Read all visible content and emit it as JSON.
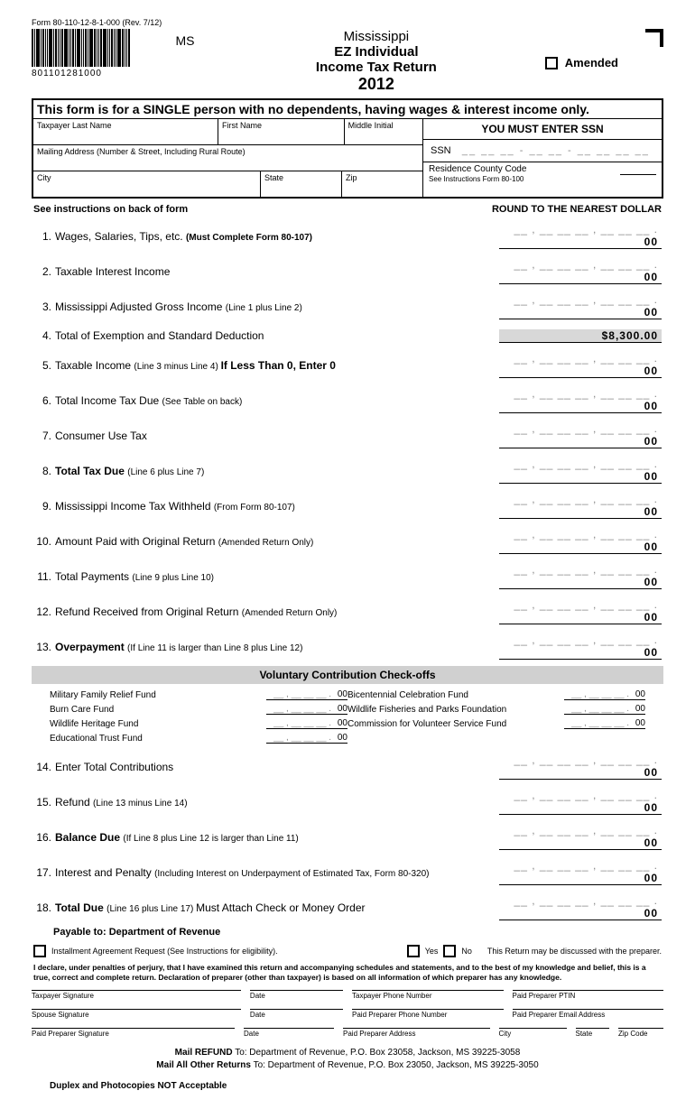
{
  "form_number": "Form 80-110-12-8-1-000 (Rev. 7/12)",
  "barcode_number": "801101281000",
  "state_code": "MS",
  "title": {
    "line1": "Mississippi",
    "line2": "EZ Individual",
    "line3": "Income Tax Return",
    "year": "2012"
  },
  "amended_label": "Amended",
  "eligibility": "This form is for a SINGLE person with no dependents, having wages & interest income only.",
  "fields": {
    "last_name": "Taxpayer Last Name",
    "first_name": "First Name",
    "middle_initial": "Middle Initial",
    "mailing_address": "Mailing Address (Number & Street, Including Rural Route)",
    "city": "City",
    "state": "State",
    "zip": "Zip",
    "ssn_header": "YOU MUST ENTER SSN",
    "ssn_label": "SSN",
    "ssn_placeholder": "__  __  __  -  __  __  -  __  __  __  __",
    "county_label": "Residence County Code",
    "county_instructions": "See Instructions Form 80-100"
  },
  "instructions_left": "See instructions on back of form",
  "instructions_right": "ROUND TO THE NEAREST DOLLAR",
  "amount_placeholder": "__ , __ __ __ , __ __ __ .",
  "cents": "00",
  "lines": [
    {
      "num": "1.",
      "label": "Wages, Salaries, Tips, etc. ",
      "suffix": "(Must Complete Form 80-107)",
      "bold_suffix": true
    },
    {
      "num": "2.",
      "label": "Taxable Interest Income"
    },
    {
      "num": "3.",
      "label": "Mississippi Adjusted Gross Income ",
      "suffix": "(Line 1 plus Line 2)"
    },
    {
      "num": "4.",
      "label": "Total of Exemption and Standard Deduction",
      "value": "$8,300.00",
      "highlighted": true
    },
    {
      "num": "5.",
      "label": "Taxable Income ",
      "suffix": "(Line 3 minus Line 4) ",
      "bold_mid": "If Less Than 0, Enter 0"
    },
    {
      "num": "6.",
      "label": "Total Income Tax Due ",
      "suffix": "(See Table on back)"
    },
    {
      "num": "7.",
      "label": "Consumer Use Tax"
    },
    {
      "num": "8.",
      "label": "Total Tax Due ",
      "suffix": "(Line 6 plus Line 7)",
      "bold": true
    },
    {
      "num": "9.",
      "label": "Mississippi Income Tax Withheld ",
      "suffix": "(From Form 80-107)"
    },
    {
      "num": "10.",
      "label": "Amount Paid with Original Return ",
      "suffix": "(Amended Return Only)"
    },
    {
      "num": "11.",
      "label": "Total Payments ",
      "suffix": "(Line 9 plus Line 10)"
    },
    {
      "num": "12.",
      "label": "Refund Received from Original Return ",
      "suffix": "(Amended Return Only)"
    },
    {
      "num": "13.",
      "label": "Overpayment ",
      "suffix": "(If Line 11 is larger than Line 8 plus Line 12)",
      "bold": true
    }
  ],
  "contributions_header": "Voluntary Contribution Check-offs",
  "contributions_left": [
    "Military Family Relief Fund",
    "Burn Care Fund",
    "Wildlife Heritage Fund",
    "Educational Trust Fund"
  ],
  "contributions_right": [
    "Bicentennial Celebration Fund",
    "Wildlife Fisheries and Parks Foundation",
    "Commission for Volunteer Service Fund"
  ],
  "lines2": [
    {
      "num": "14.",
      "label": "Enter Total Contributions"
    },
    {
      "num": "15.",
      "label": "Refund ",
      "suffix": "(Line 13 minus Line 14)"
    },
    {
      "num": "16.",
      "label": "Balance Due ",
      "suffix": "(If Line 8 plus Line 12 is larger than Line 11)",
      "bold": true
    },
    {
      "num": "17.",
      "label": "Interest and Penalty ",
      "suffix": "(Including Interest on Underpayment of Estimated Tax, Form 80-320)"
    },
    {
      "num": "18.",
      "label": "Total Due ",
      "suffix": "(Line 16 plus Line 17) ",
      "suffix2": "Must Attach Check or Money Order",
      "bold": true
    }
  ],
  "payable": "Payable to: Department of Revenue",
  "installment": "Installment Agreement Request (See Instructions for eligibility).",
  "yes": "Yes",
  "no": "No",
  "preparer_note": "This Return may be discussed with the preparer.",
  "declaration": "I declare, under penalties of perjury, that I have examined this return and accompanying schedules and statements, and to the best of my knowledge and belief, this is a true, correct and complete return.  Declaration of preparer (other than taxpayer) is based on all information of which preparer has any knowledge.",
  "sig": {
    "taxpayer_sig": "Taxpayer Signature",
    "date": "Date",
    "taxpayer_phone": "Taxpayer  Phone Number",
    "ptin": "Paid Preparer PTIN",
    "spouse_sig": "Spouse Signature",
    "preparer_phone": "Paid Preparer Phone Number",
    "preparer_email": "Paid Preparer Email Address",
    "preparer_sig": "Paid Preparer Signature",
    "preparer_address": "Paid Preparer Address",
    "city": "City",
    "state": "State",
    "zip": "Zip Code"
  },
  "mail": {
    "refund": "Mail REFUND To: Department of Revenue, P.O. Box 23058, Jackson, MS 39225-3058",
    "other": "Mail All Other Returns To: Department of Revenue, P.O. Box 23050, Jackson, MS 39225-3050"
  },
  "duplex": "Duplex and Photocopies NOT Acceptable"
}
